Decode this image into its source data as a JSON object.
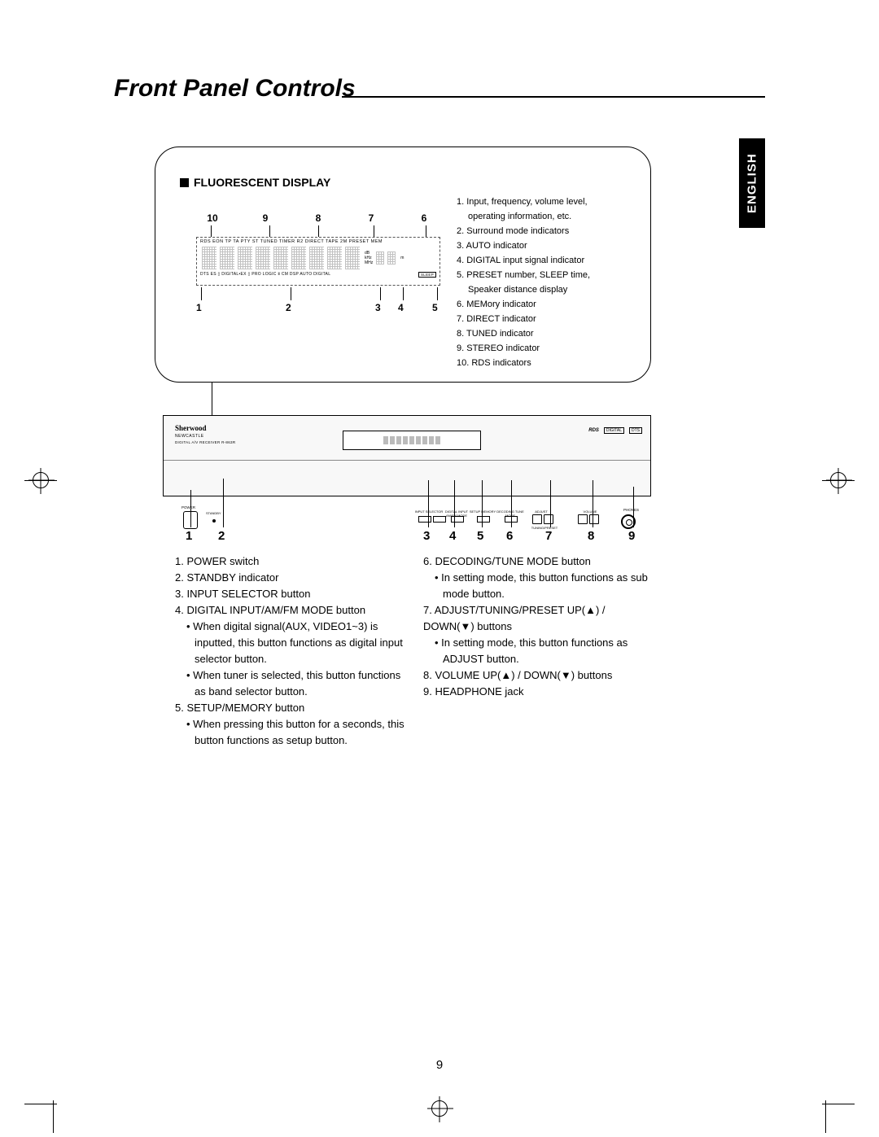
{
  "page": {
    "title": "Front Panel Controls",
    "language_tab": "ENGLISH",
    "number": "9"
  },
  "fluorescent": {
    "heading": "FLUORESCENT DISPLAY",
    "top_nums": [
      "10",
      "9",
      "8",
      "7",
      "6"
    ],
    "bot_nums": [
      "1",
      "2",
      "3",
      "4",
      "5"
    ],
    "row_top_text": "RDS EON TP TA PTY ST TUNED TIMER R2 DIRECT  TAPE 2M  PRESET MEM",
    "row_bot_left": "DTS ES ▯ DIGITAL•EX ▯ PRO LOGIC Ⅱ CM DSP AUTO DIGITAL",
    "row_bot_right": "SLEEP",
    "units": [
      "dB",
      "kHz",
      "MHz",
      "m"
    ],
    "legend": [
      "1. Input, frequency, volume level,",
      "   operating information, etc.",
      "2. Surround mode indicators",
      "3. AUTO indicator",
      "4. DIGITAL input signal indicator",
      "5. PRESET number, SLEEP time,",
      "   Speaker distance display",
      "6. MEMory indicator",
      "7. DIRECT indicator",
      "8. TUNED indicator",
      "9. STEREO indicator",
      "10. RDS indicators"
    ]
  },
  "panel": {
    "brand": "Sherwood",
    "subbrand": "NEWCASTLE",
    "model": "DIGITAL A/V RECEIVER  R-863R",
    "logos": [
      "RDS",
      "DIGITAL",
      "DTS"
    ],
    "pwr_label": "POWER",
    "standby_label": "STANDBY",
    "hp_label": "PHONES",
    "btn_labels": {
      "insel": "INPUT SELECTOR",
      "digi": "DIGITAL INPUT\nAM/FM MODE",
      "setup": "SETUP\nMEMORY",
      "dec": "DECODING\nTUNE MODE",
      "adj": "ADJUST",
      "tune": "TUNING/PRESET",
      "vol": "VOLUME"
    },
    "callouts": [
      "1",
      "2",
      "3",
      "4",
      "5",
      "6",
      "7",
      "8",
      "9"
    ]
  },
  "controls_left": [
    {
      "n": "1",
      "t": "POWER switch"
    },
    {
      "n": "2",
      "t": "STANDBY indicator"
    },
    {
      "n": "3",
      "t": "INPUT SELECTOR button"
    },
    {
      "n": "4",
      "t": "DIGITAL INPUT/AM/FM MODE button",
      "subs": [
        "When digital signal(AUX, VIDEO1~3) is inputted, this button functions as digital input selector button.",
        "When tuner is selected, this button functions as band selector button."
      ]
    },
    {
      "n": "5",
      "t": "SETUP/MEMORY button",
      "subs": [
        "When pressing this button for a seconds, this button functions as setup button."
      ]
    }
  ],
  "controls_right": [
    {
      "n": "6",
      "t": "DECODING/TUNE MODE button",
      "subs": [
        "In setting mode, this button functions as sub mode button."
      ]
    },
    {
      "n": "7",
      "t": "ADJUST/TUNING/PRESET UP(▲) / DOWN(▼) buttons",
      "subs": [
        "In setting mode, this button functions as ADJUST button."
      ]
    },
    {
      "n": "8",
      "t": "VOLUME UP(▲) / DOWN(▼) buttons"
    },
    {
      "n": "9",
      "t": "HEADPHONE jack"
    }
  ]
}
